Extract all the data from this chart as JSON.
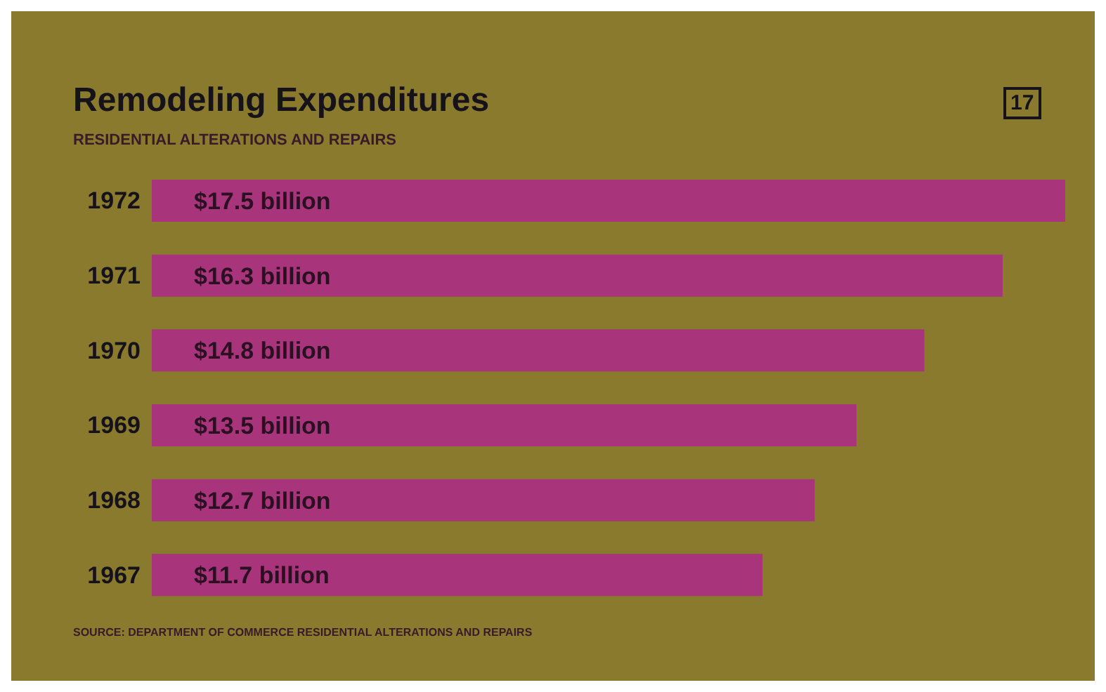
{
  "chart_data": {
    "type": "bar",
    "orientation": "horizontal",
    "title": "Remodeling Expenditures",
    "subtitle": "RESIDENTIAL ALTERATIONS AND REPAIRS",
    "categories": [
      "1972",
      "1971",
      "1970",
      "1969",
      "1968",
      "1967"
    ],
    "values": [
      17.5,
      16.3,
      14.8,
      13.5,
      12.7,
      11.7
    ],
    "value_labels": [
      "$17.5 billion",
      "$16.3 billion",
      "$14.8 billion",
      "$13.5 billion",
      "$12.7 billion",
      "$11.7 billion"
    ],
    "color": "#a8357c",
    "xlim": [
      0,
      17.5
    ],
    "tick_labels": "y",
    "annotations": [
      "17",
      "SOURCE: DEPARTMENT OF COMMERCE RESIDENTIAL ALTERATIONS AND REPAIRS"
    ]
  }
}
